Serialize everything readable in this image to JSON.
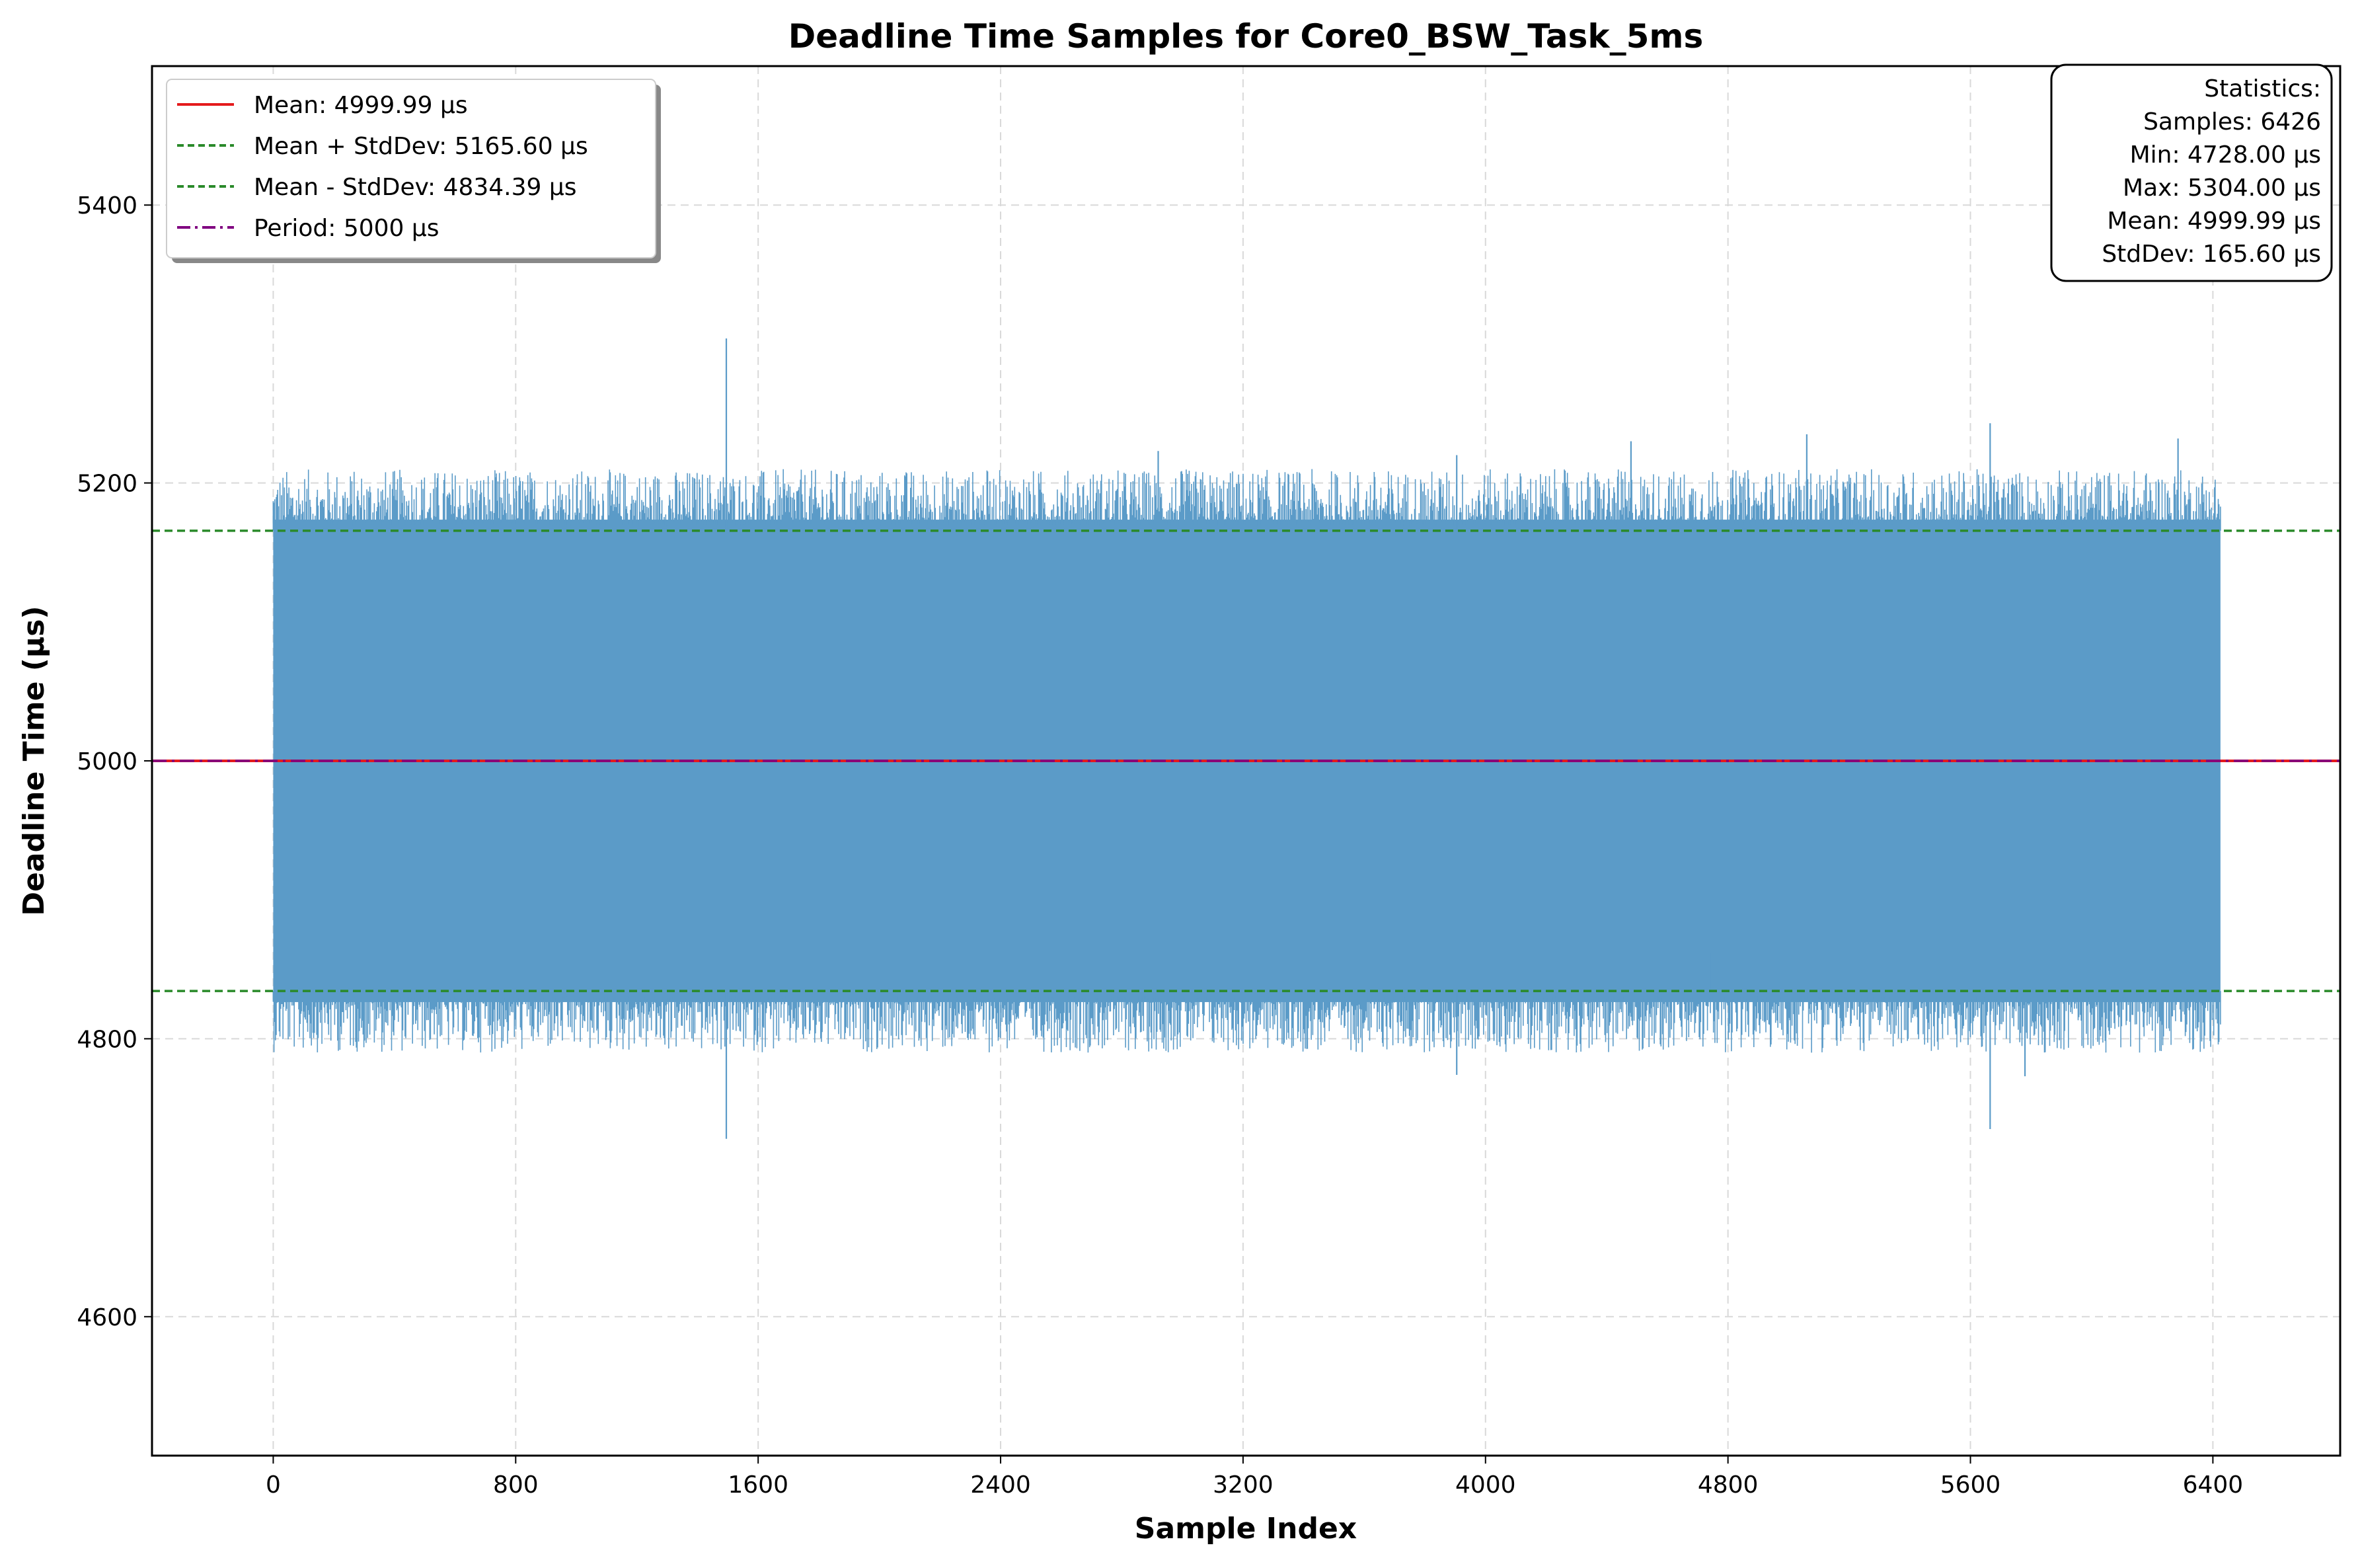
{
  "chart_data": {
    "type": "line",
    "title": "Deadline Time Samples for Core0_BSW_Task_5ms",
    "xlabel": "Sample Index",
    "ylabel": "Deadline Time (µs)",
    "xlim": [
      -400,
      6820
    ],
    "ylim": [
      4500,
      5500
    ],
    "x_ticks": [
      0,
      800,
      1600,
      2400,
      3200,
      4000,
      4800,
      5600,
      6400
    ],
    "y_ticks": [
      4600,
      4800,
      5000,
      5200,
      5400
    ],
    "grid": true,
    "legend_position": "top-left",
    "series": [
      {
        "name": "",
        "color": "#5b9bc8",
        "sample_count": 6426,
        "x_range": [
          0,
          6425
        ],
        "band": {
          "dense_low": 4834.39,
          "dense_high": 5165.6,
          "typical_low": 4800,
          "typical_high": 5200
        },
        "spikes": [
          {
            "x": 1495,
            "y": 5304
          },
          {
            "x": 1495,
            "y": 4728
          },
          {
            "x": 5665,
            "y": 5243
          },
          {
            "x": 5665,
            "y": 4735
          },
          {
            "x": 6285,
            "y": 5232
          },
          {
            "x": 4480,
            "y": 5230
          },
          {
            "x": 5060,
            "y": 5235
          },
          {
            "x": 3905,
            "y": 5220
          },
          {
            "x": 2920,
            "y": 5223
          },
          {
            "x": 4745,
            "y": 4862
          },
          {
            "x": 3905,
            "y": 4774
          },
          {
            "x": 5780,
            "y": 4773
          }
        ]
      }
    ],
    "reference_lines": [
      {
        "name": "Mean: 4999.99 µs",
        "y": 4999.99,
        "color": "#e41a1c",
        "style": "solid"
      },
      {
        "name": "Mean + StdDev: 5165.60 µs",
        "y": 5165.6,
        "color": "#2a8a2a",
        "style": "dashed"
      },
      {
        "name": "Mean - StdDev: 4834.39 µs",
        "y": 4834.39,
        "color": "#2a8a2a",
        "style": "dashed"
      },
      {
        "name": "Period: 5000 µs",
        "y": 5000,
        "color": "#800080",
        "style": "dashdot"
      }
    ],
    "stats_box": [
      "Statistics:",
      "Samples: 6426",
      "Min: 4728.00 µs",
      "Max: 5304.00 µs",
      "Mean: 4999.99 µs",
      "StdDev: 165.60 µs"
    ]
  }
}
